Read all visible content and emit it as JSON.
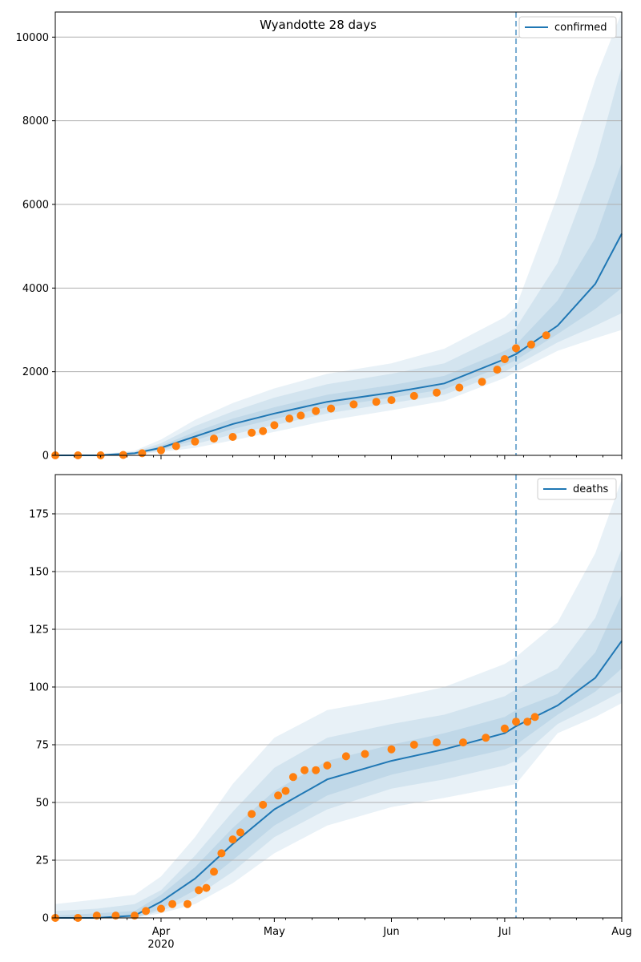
{
  "colors": {
    "model_line": "#1f77b4",
    "band_fill": "#1f77b4",
    "observed": "#ff7f0e",
    "grid": "#b0b0b0",
    "vline": "#1f77b4"
  },
  "x_axis": {
    "tick_labels": [
      "Apr",
      "May",
      "Jun",
      "Jul",
      "Aug"
    ],
    "tick_dates": [
      "2020-04-01",
      "2020-05-01",
      "2020-06-01",
      "2020-07-01",
      "2020-08-01"
    ],
    "year_label": "2020",
    "range": [
      "2020-03-04",
      "2020-08-01"
    ]
  },
  "chart_data": [
    {
      "type": "line",
      "title": "Wyandotte 28 days",
      "legend": "top-right",
      "grid": "y",
      "ylim": [
        0,
        10600
      ],
      "yticks": [
        0,
        2000,
        4000,
        6000,
        8000,
        10000
      ],
      "vline_date": "2020-07-04",
      "series": [
        {
          "name": "confirmed",
          "x": [
            "2020-03-04",
            "2020-03-15",
            "2020-03-25",
            "2020-04-01",
            "2020-04-10",
            "2020-04-20",
            "2020-05-01",
            "2020-05-15",
            "2020-06-01",
            "2020-06-15",
            "2020-07-01",
            "2020-07-04",
            "2020-07-15",
            "2020-07-25",
            "2020-08-01"
          ],
          "y": [
            0,
            0,
            50,
            180,
            450,
            750,
            1000,
            1280,
            1500,
            1720,
            2300,
            2420,
            3100,
            4100,
            5300
          ]
        }
      ],
      "bands": [
        {
          "x": [
            "2020-03-04",
            "2020-03-15",
            "2020-03-25",
            "2020-04-01",
            "2020-04-10",
            "2020-04-20",
            "2020-05-01",
            "2020-05-15",
            "2020-06-01",
            "2020-06-15",
            "2020-07-01",
            "2020-07-04",
            "2020-07-15",
            "2020-07-25",
            "2020-08-01"
          ],
          "lower": [
            0,
            0,
            20,
            80,
            180,
            360,
            560,
            830,
            1080,
            1300,
            1850,
            2000,
            2500,
            2800,
            3000
          ],
          "upper": [
            10,
            20,
            110,
            380,
            850,
            1250,
            1600,
            1950,
            2200,
            2550,
            3300,
            3550,
            6200,
            9000,
            10600
          ]
        },
        {
          "x": [
            "2020-03-04",
            "2020-03-15",
            "2020-03-25",
            "2020-04-01",
            "2020-04-10",
            "2020-04-20",
            "2020-05-01",
            "2020-05-15",
            "2020-06-01",
            "2020-06-15",
            "2020-07-01",
            "2020-07-04",
            "2020-07-15",
            "2020-07-25",
            "2020-08-01"
          ],
          "lower": [
            0,
            0,
            30,
            110,
            270,
            500,
            720,
            1000,
            1250,
            1450,
            2000,
            2150,
            2700,
            3100,
            3400
          ],
          "upper": [
            5,
            10,
            80,
            290,
            700,
            1050,
            1380,
            1700,
            1950,
            2200,
            2900,
            3050,
            4600,
            7000,
            9300
          ]
        },
        {
          "x": [
            "2020-03-04",
            "2020-03-15",
            "2020-03-25",
            "2020-04-01",
            "2020-04-10",
            "2020-04-20",
            "2020-05-01",
            "2020-05-15",
            "2020-06-01",
            "2020-06-15",
            "2020-07-01",
            "2020-07-04",
            "2020-07-15",
            "2020-07-25",
            "2020-08-01"
          ],
          "lower": [
            0,
            0,
            40,
            140,
            360,
            630,
            870,
            1150,
            1380,
            1580,
            2150,
            2280,
            2900,
            3500,
            4000
          ],
          "upper": [
            3,
            5,
            65,
            230,
            560,
            880,
            1150,
            1450,
            1680,
            1900,
            2500,
            2650,
            3700,
            5200,
            7000
          ]
        }
      ],
      "observed": {
        "x": [
          "2020-03-04",
          "2020-03-10",
          "2020-03-16",
          "2020-03-22",
          "2020-03-27",
          "2020-04-01",
          "2020-04-05",
          "2020-04-10",
          "2020-04-15",
          "2020-04-20",
          "2020-04-25",
          "2020-04-28",
          "2020-05-01",
          "2020-05-05",
          "2020-05-08",
          "2020-05-12",
          "2020-05-16",
          "2020-05-22",
          "2020-05-28",
          "2020-06-01",
          "2020-06-07",
          "2020-06-13",
          "2020-06-19",
          "2020-06-25",
          "2020-06-29",
          "2020-07-01",
          "2020-07-04",
          "2020-07-08",
          "2020-07-12"
        ],
        "y": [
          0,
          0,
          0,
          10,
          50,
          120,
          220,
          330,
          400,
          440,
          540,
          580,
          720,
          880,
          950,
          1060,
          1120,
          1220,
          1280,
          1320,
          1420,
          1500,
          1620,
          1760,
          2050,
          2300,
          2560,
          2650,
          2870
        ]
      }
    },
    {
      "type": "line",
      "title": "",
      "legend": "top-right",
      "grid": "y",
      "ylim": [
        0,
        192
      ],
      "yticks": [
        0,
        25,
        50,
        75,
        100,
        125,
        150,
        175
      ],
      "vline_date": "2020-07-04",
      "series": [
        {
          "name": "deaths",
          "x": [
            "2020-03-04",
            "2020-03-15",
            "2020-03-25",
            "2020-04-01",
            "2020-04-10",
            "2020-04-20",
            "2020-05-01",
            "2020-05-15",
            "2020-06-01",
            "2020-06-15",
            "2020-07-01",
            "2020-07-04",
            "2020-07-15",
            "2020-07-25",
            "2020-08-01"
          ],
          "y": [
            0,
            0,
            1,
            7,
            17,
            32,
            47,
            60,
            68,
            73,
            80,
            83,
            92,
            104,
            120
          ]
        }
      ],
      "bands": [
        {
          "x": [
            "2020-03-04",
            "2020-03-15",
            "2020-03-25",
            "2020-04-01",
            "2020-04-10",
            "2020-04-20",
            "2020-05-01",
            "2020-05-15",
            "2020-06-01",
            "2020-06-15",
            "2020-07-01",
            "2020-07-04",
            "2020-07-15",
            "2020-07-25",
            "2020-08-01"
          ],
          "lower": [
            0,
            0,
            0,
            2,
            6,
            15,
            28,
            40,
            48,
            52,
            57,
            58,
            80,
            87,
            93
          ],
          "upper": [
            6,
            8,
            10,
            18,
            35,
            58,
            78,
            90,
            95,
            100,
            110,
            113,
            128,
            158,
            190
          ]
        },
        {
          "x": [
            "2020-03-04",
            "2020-03-15",
            "2020-03-25",
            "2020-04-01",
            "2020-04-10",
            "2020-04-20",
            "2020-05-01",
            "2020-05-15",
            "2020-06-01",
            "2020-06-15",
            "2020-07-01",
            "2020-07-04",
            "2020-07-15",
            "2020-07-25",
            "2020-08-01"
          ],
          "lower": [
            0,
            0,
            0,
            3,
            9,
            20,
            35,
            47,
            56,
            60,
            66,
            68,
            84,
            92,
            98
          ],
          "upper": [
            3,
            4,
            6,
            12,
            27,
            46,
            65,
            78,
            84,
            88,
            96,
            99,
            108,
            130,
            160
          ]
        },
        {
          "x": [
            "2020-03-04",
            "2020-03-15",
            "2020-03-25",
            "2020-04-01",
            "2020-04-10",
            "2020-04-20",
            "2020-05-01",
            "2020-05-15",
            "2020-06-01",
            "2020-06-15",
            "2020-07-01",
            "2020-07-04",
            "2020-07-15",
            "2020-07-25",
            "2020-08-01"
          ],
          "lower": [
            0,
            0,
            0,
            4,
            12,
            25,
            40,
            53,
            62,
            67,
            73,
            75,
            88,
            98,
            108
          ],
          "upper": [
            1,
            2,
            3,
            10,
            22,
            39,
            55,
            68,
            75,
            80,
            87,
            90,
            97,
            115,
            140
          ]
        }
      ],
      "observed": {
        "x": [
          "2020-03-04",
          "2020-03-10",
          "2020-03-15",
          "2020-03-20",
          "2020-03-25",
          "2020-03-28",
          "2020-04-01",
          "2020-04-04",
          "2020-04-08",
          "2020-04-11",
          "2020-04-13",
          "2020-04-15",
          "2020-04-17",
          "2020-04-20",
          "2020-04-22",
          "2020-04-25",
          "2020-04-28",
          "2020-05-02",
          "2020-05-04",
          "2020-05-06",
          "2020-05-09",
          "2020-05-12",
          "2020-05-15",
          "2020-05-20",
          "2020-05-25",
          "2020-06-01",
          "2020-06-07",
          "2020-06-13",
          "2020-06-20",
          "2020-06-26",
          "2020-07-01",
          "2020-07-04",
          "2020-07-07",
          "2020-07-09"
        ],
        "y": [
          0,
          0,
          1,
          1,
          1,
          3,
          4,
          6,
          6,
          12,
          13,
          20,
          28,
          34,
          37,
          45,
          49,
          53,
          55,
          61,
          64,
          64,
          66,
          70,
          71,
          73,
          75,
          76,
          76,
          78,
          82,
          85,
          85,
          87
        ]
      }
    }
  ]
}
